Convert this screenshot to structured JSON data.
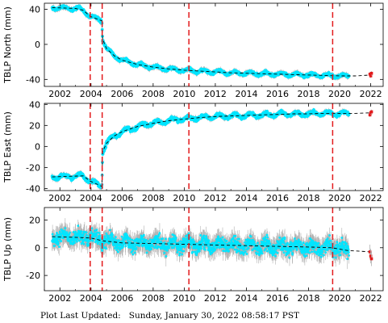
{
  "footer": {
    "label": "Plot Last Updated:",
    "timestamp": "Sunday, January 30, 2022 08:58:17 PST"
  },
  "colors": {
    "data": "#00e5ff",
    "error_bars": "#b0b0b0",
    "model": "#000000",
    "events": "#e31a1c",
    "recent": "#e31a1c"
  },
  "chart_data": [
    {
      "type": "scatter",
      "ylabel": "TBLP North (mm)",
      "xlim": [
        2001,
        2022.8
      ],
      "ylim": [
        -48,
        47
      ],
      "yticks": [
        -40,
        0,
        40
      ],
      "xticks": [
        2002,
        2004,
        2006,
        2008,
        2010,
        2012,
        2014,
        2016,
        2018,
        2020,
        2022
      ],
      "event_lines": [
        2003.95,
        2004.72,
        2010.3,
        2019.55
      ],
      "data_gap": [
        2020.6,
        2021.7
      ],
      "model_line": {
        "x": [
          2001.5,
          2003.0,
          2003.5,
          2003.95,
          2004.7,
          2004.75,
          2005.0,
          2005.5,
          2006.0,
          2007.0,
          2008.0,
          2009.0,
          2010.0,
          2011.0,
          2012.0,
          2013.0,
          2014.0,
          2015.0,
          2016.0,
          2017.0,
          2018.0,
          2019.0,
          2020.0,
          2021.0,
          2022.0
        ],
        "y": [
          42,
          41,
          39,
          32,
          27,
          6,
          -5,
          -13,
          -18,
          -23,
          -26,
          -28,
          -29.5,
          -30.5,
          -31.5,
          -32.5,
          -33,
          -33.5,
          -34,
          -34.5,
          -35,
          -35.5,
          -36,
          -36,
          -35
        ]
      },
      "recent_points": {
        "x": [
          21.95,
          22.0,
          22.05
        ],
        "y": [
          -34,
          -36,
          -33
        ]
      }
    },
    {
      "type": "scatter",
      "ylabel": "TBLP East (mm)",
      "xlim": [
        2001,
        2022.8
      ],
      "ylim": [
        -42,
        41
      ],
      "yticks": [
        -40,
        -20,
        0,
        20,
        40
      ],
      "xticks": [
        2002,
        2004,
        2006,
        2008,
        2010,
        2012,
        2014,
        2016,
        2018,
        2020,
        2022
      ],
      "event_lines": [
        2003.95,
        2004.72,
        2010.3,
        2019.55
      ],
      "data_gap": [
        2020.6,
        2021.7
      ],
      "model_line": {
        "x": [
          2001.5,
          2002.5,
          2003.5,
          2003.95,
          2004.7,
          2004.75,
          2005.0,
          2005.5,
          2006.0,
          2007.0,
          2008.0,
          2009.0,
          2010.0,
          2011.0,
          2012.0,
          2013.0,
          2014.0,
          2015.0,
          2016.0,
          2017.0,
          2018.0,
          2019.0,
          2020.0,
          2021.0,
          2022.0
        ],
        "y": [
          -29,
          -28.5,
          -28,
          -33,
          -38,
          -5,
          3,
          10,
          14,
          19,
          22,
          24.5,
          26,
          27.5,
          28.5,
          29,
          29.5,
          30,
          30.5,
          31,
          31,
          31.5,
          31.5,
          31.5,
          32
        ]
      },
      "recent_points": {
        "x": [
          2021.95,
          2022.0,
          2022.05
        ],
        "y": [
          30,
          32,
          33
        ]
      }
    },
    {
      "type": "scatter",
      "ylabel": "TBLP Up (mm)",
      "xlim": [
        2001,
        2022.8
      ],
      "ylim": [
        -31,
        29
      ],
      "yticks": [
        -20,
        0,
        20
      ],
      "xticks": [
        2002,
        2004,
        2006,
        2008,
        2010,
        2012,
        2014,
        2016,
        2018,
        2020,
        2022
      ],
      "event_lines": [
        2003.95,
        2004.72,
        2010.3,
        2019.55
      ],
      "data_gap": [
        2020.6,
        2021.7
      ],
      "model_line": {
        "x": [
          2001.5,
          2003.0,
          2004.0,
          2004.75,
          2006.0,
          2008.0,
          2010.0,
          2012.0,
          2014.0,
          2016.0,
          2018.0,
          2019.5,
          2020.5,
          2022.0
        ],
        "y": [
          8,
          7.5,
          7,
          5,
          3.5,
          3,
          2.5,
          2,
          1.5,
          1,
          0.5,
          0,
          -2,
          -3
        ]
      },
      "recent_points": {
        "x": [
          2021.95,
          2022.0,
          2022.05
        ],
        "y": [
          -3,
          -6,
          -8
        ]
      }
    }
  ]
}
